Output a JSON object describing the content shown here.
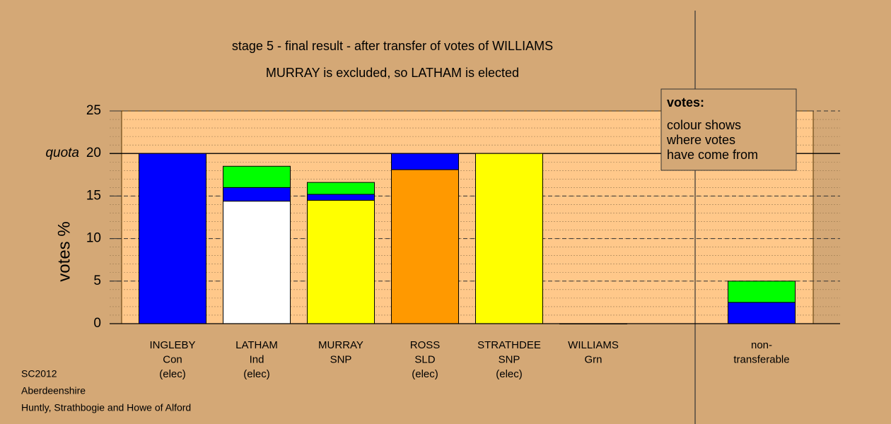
{
  "chart_data": {
    "type": "stacked_bar",
    "title": "stage 5 - final result - after transfer of votes of WILLIAMS",
    "subtitle": "MURRAY is excluded, so LATHAM is elected",
    "y_label": "votes %",
    "categories": [
      [
        "INGLEBY",
        "Con",
        "(elec)"
      ],
      [
        "LATHAM",
        "Ind",
        "(elec)"
      ],
      [
        "MURRAY",
        "SNP"
      ],
      [
        "ROSS",
        "SLD",
        "(elec)"
      ],
      [
        "STRATHDEE",
        "SNP",
        "(elec)"
      ],
      [
        "WILLIAMS",
        "Grn"
      ],
      [
        "non-",
        "transferable"
      ]
    ],
    "series": [
      {
        "color": "#ffffff",
        "values": [
          null,
          14.4,
          null,
          null,
          null,
          null,
          null
        ]
      },
      {
        "color": "#ffff00",
        "values": [
          null,
          null,
          14.5,
          null,
          20,
          null,
          null
        ]
      },
      {
        "color": "#ff9900",
        "values": [
          null,
          null,
          null,
          18.1,
          null,
          null,
          null
        ]
      },
      {
        "color": "#0000ff",
        "values": [
          20,
          1.6,
          0.7,
          1.9,
          null,
          0,
          2.5
        ]
      },
      {
        "color": "#00ff00",
        "values": [
          null,
          2.5,
          1.4,
          null,
          null,
          null,
          2.5
        ]
      }
    ],
    "ylim": [
      0,
      25
    ],
    "yticks": [
      0,
      5,
      10,
      15,
      20,
      25
    ],
    "minor_grid_step": 1,
    "quota": 20,
    "quota_label": "quota",
    "legend_note": {
      "title": "votes:",
      "lines": [
        "colour shows",
        "where votes",
        "have come from"
      ]
    },
    "footer": [
      "SC2012",
      "Aberdeenshire",
      "Huntly, Strathbogie and Howe of Alford"
    ]
  }
}
